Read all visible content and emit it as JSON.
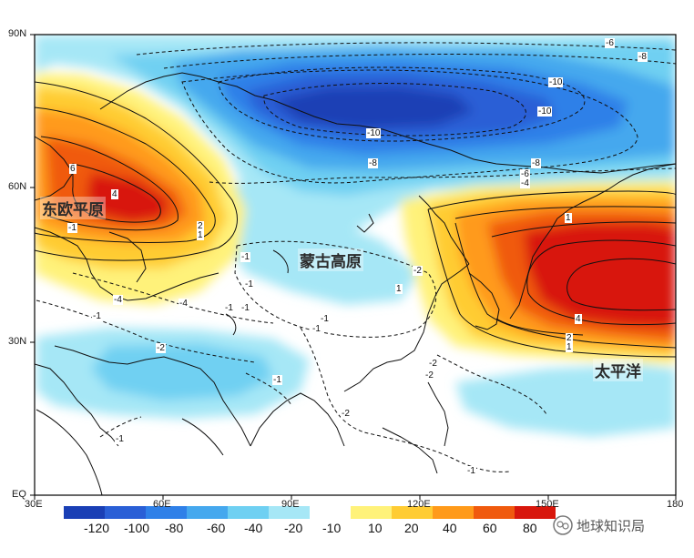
{
  "lat_labels": [
    "90N",
    "60N",
    "30N",
    "EQ"
  ],
  "lon_labels": [
    "30E",
    "60E",
    "90E",
    "120E",
    "150E",
    "180"
  ],
  "region_labels": {
    "east_european_plain": "东欧平原",
    "mongolian_plateau": "蒙古高原",
    "pacific": "太平洋"
  },
  "contour_labels": {
    "l1": "-6",
    "l2": "-8",
    "l3": "-10",
    "l4": "-10",
    "l5": "-10",
    "l6": "-8",
    "l7": "-8",
    "l8": "-6",
    "l9": "-4",
    "l10": "6",
    "l11": "4",
    "l12": "2",
    "l13": "1",
    "l14": "-1",
    "l15": "-1",
    "l16": "-1",
    "l17": "-1",
    "l18": "-2",
    "l19": "-4",
    "l20": "-4",
    "l21": "-1",
    "l22": "1",
    "l23": "-2",
    "l24": "1",
    "l25": "4",
    "l26": "2",
    "l27": "1",
    "l28": "-1",
    "l29": "-1",
    "l30": "-2",
    "l31": "-2",
    "l32": "-1",
    "l33": "-1",
    "l34": "-2",
    "l35": "-1",
    "l36": "-1"
  },
  "colorbar": {
    "labels": [
      "-120",
      "-100",
      "-80",
      "-60",
      "-40",
      "-20",
      "-10",
      "10",
      "20",
      "40",
      "60",
      "80"
    ],
    "colors": [
      "#1a3fb5",
      "#2a5fd6",
      "#2f80e8",
      "#45a8ee",
      "#6fd0f2",
      "#a6e7f6",
      "#ffffff",
      "#fff27a",
      "#ffcc33",
      "#ff9a1a",
      "#f05a0e",
      "#d8170c"
    ]
  },
  "watermark": "地球知识局"
}
